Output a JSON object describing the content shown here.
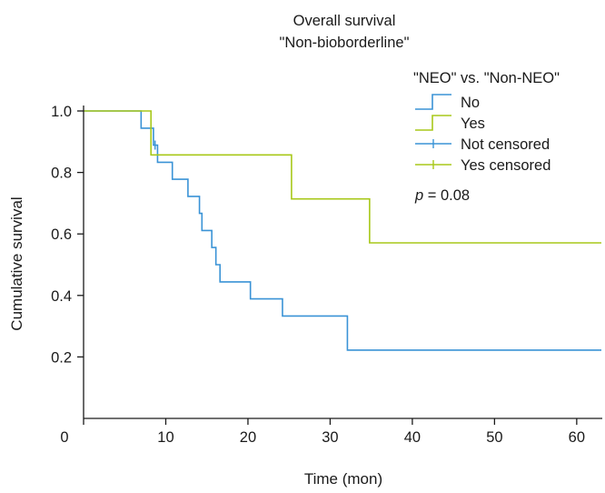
{
  "chart_data": {
    "type": "line",
    "step": true,
    "title": "Overall survival",
    "subtitle": "\"Non-bioborderline\"",
    "xlabel": "Time (mon)",
    "ylabel": "Cumulative survival",
    "xlim": [
      0,
      63
    ],
    "ylim": [
      0.0,
      1.0
    ],
    "xticks": [
      0,
      10,
      20,
      30,
      40,
      50,
      60
    ],
    "xtick_labels": [
      "0",
      "10",
      "20",
      "30",
      "40",
      "50",
      "60"
    ],
    "yticks": [
      0.2,
      0.4,
      0.6,
      0.8,
      1.0
    ],
    "ytick_labels": [
      "0.2",
      "0.4",
      "0.6",
      "0.8",
      "1.0"
    ],
    "grid": false,
    "legend": {
      "title": "\"NEO\" vs. \"Non-NEO\"",
      "placement": "top-right",
      "entries": [
        {
          "label": "No",
          "kind": "step",
          "color": "#3a93d6"
        },
        {
          "label": "Yes",
          "kind": "step",
          "color": "#a8c81a"
        },
        {
          "label": "Not censored",
          "kind": "censor",
          "color": "#3a93d6"
        },
        {
          "label": "Yes censored",
          "kind": "censor",
          "color": "#a8c81a"
        }
      ]
    },
    "annotation": {
      "italic": "p",
      "rest": " = 0.08"
    },
    "series": [
      {
        "name": "No",
        "color": "#3a93d6",
        "steps": [
          [
            0,
            1.0
          ],
          [
            7,
            0.944
          ],
          [
            8.5,
            0.889
          ],
          [
            9,
            0.833
          ],
          [
            10.8,
            0.778
          ],
          [
            12.7,
            0.722
          ],
          [
            14.1,
            0.667
          ],
          [
            14.4,
            0.611
          ],
          [
            15.6,
            0.556
          ],
          [
            16.1,
            0.5
          ],
          [
            16.6,
            0.444
          ],
          [
            20.3,
            0.389
          ],
          [
            24.2,
            0.333
          ],
          [
            32.1,
            0.222
          ],
          [
            63,
            0.222
          ]
        ],
        "censor_x": [
          8.7
        ]
      },
      {
        "name": "Yes",
        "color": "#a8c81a",
        "steps": [
          [
            0,
            1.0
          ],
          [
            8.2,
            0.857
          ],
          [
            25.3,
            0.714
          ],
          [
            34.8,
            0.571
          ],
          [
            63,
            0.571
          ]
        ],
        "censor_x": []
      }
    ]
  }
}
